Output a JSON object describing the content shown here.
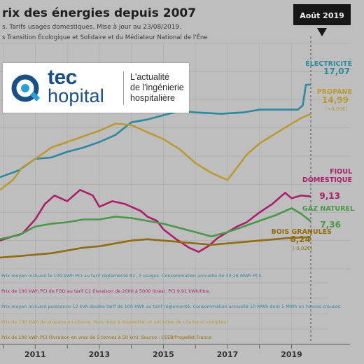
{
  "chart_data": {
    "type": "line",
    "title": "rix des énergies depuis 2007",
    "subtitle_lines": [
      "s. Tarifs usages domestiques. Mise à jour au 23/08/2019.",
      "s Transition Écologique et Solidaire et du Médiateur National de l'Éne"
    ],
    "highlight": {
      "label": "Août 2019",
      "x": 2019.6
    },
    "x_ticks": [
      2011,
      2013,
      2015,
      2017,
      2019
    ],
    "xlim": [
      2009.9,
      2019.95
    ],
    "ylim": [
      3.6,
      20.0
    ],
    "grid": true,
    "series": [
      {
        "name": "ÉLECTRICITÉ",
        "end_label": "17,07",
        "color": "#2e8fa6",
        "points": [
          [
            2009.9,
            10.5
          ],
          [
            2010.5,
            11.0
          ],
          [
            2011.0,
            11.8
          ],
          [
            2011.5,
            11.9
          ],
          [
            2012.0,
            12.3
          ],
          [
            2012.5,
            12.6
          ],
          [
            2013.0,
            13.0
          ],
          [
            2013.5,
            13.5
          ],
          [
            2014.0,
            14.4
          ],
          [
            2014.5,
            14.6
          ],
          [
            2015.0,
            14.9
          ],
          [
            2015.5,
            15.2
          ],
          [
            2016.0,
            15.1
          ],
          [
            2016.8,
            15.0
          ],
          [
            2017.5,
            15.1
          ],
          [
            2018.0,
            15.3
          ],
          [
            2018.8,
            15.3
          ],
          [
            2019.2,
            15.3
          ],
          [
            2019.35,
            15.6
          ],
          [
            2019.45,
            17.07
          ],
          [
            2019.6,
            17.07
          ]
        ]
      },
      {
        "name": "PROPANE",
        "end_label": "14,99",
        "sub": "(+0,00€)",
        "color": "#c4a233",
        "points": [
          [
            2009.9,
            9.6
          ],
          [
            2010.3,
            10.3
          ],
          [
            2010.6,
            11.2
          ],
          [
            2011.0,
            11.8
          ],
          [
            2011.5,
            12.6
          ],
          [
            2012.0,
            13.0
          ],
          [
            2012.5,
            13.4
          ],
          [
            2013.0,
            13.8
          ],
          [
            2013.5,
            14.3
          ],
          [
            2014.0,
            14.2
          ],
          [
            2014.5,
            13.7
          ],
          [
            2015.0,
            13.2
          ],
          [
            2015.5,
            12.5
          ],
          [
            2016.0,
            11.5
          ],
          [
            2016.5,
            10.8
          ],
          [
            2016.8,
            10.5
          ],
          [
            2017.0,
            10.3
          ],
          [
            2017.3,
            11.2
          ],
          [
            2017.6,
            12.1
          ],
          [
            2018.0,
            12.9
          ],
          [
            2018.5,
            13.6
          ],
          [
            2019.0,
            14.3
          ],
          [
            2019.3,
            14.7
          ],
          [
            2019.6,
            14.99
          ]
        ]
      },
      {
        "name": "FIOUL DOMESTIQUE",
        "end_label": "9,13",
        "color": "#b51c6e",
        "points": [
          [
            2009.9,
            6.0
          ],
          [
            2010.3,
            6.3
          ],
          [
            2010.6,
            6.5
          ],
          [
            2011.0,
            7.5
          ],
          [
            2011.3,
            8.6
          ],
          [
            2011.6,
            9.2
          ],
          [
            2012.0,
            8.8
          ],
          [
            2012.4,
            9.6
          ],
          [
            2012.8,
            9.2
          ],
          [
            2013.0,
            8.4
          ],
          [
            2013.4,
            8.8
          ],
          [
            2013.8,
            8.6
          ],
          [
            2014.0,
            8.4
          ],
          [
            2014.3,
            8.1
          ],
          [
            2014.5,
            7.7
          ],
          [
            2014.8,
            7.4
          ],
          [
            2015.0,
            6.8
          ],
          [
            2015.4,
            6.1
          ],
          [
            2015.8,
            5.5
          ],
          [
            2016.1,
            5.2
          ],
          [
            2016.4,
            5.6
          ],
          [
            2016.7,
            6.2
          ],
          [
            2017.0,
            6.6
          ],
          [
            2017.3,
            7.0
          ],
          [
            2017.6,
            7.3
          ],
          [
            2018.0,
            8.0
          ],
          [
            2018.4,
            8.6
          ],
          [
            2018.8,
            9.4
          ],
          [
            2019.0,
            9.0
          ],
          [
            2019.3,
            9.2
          ],
          [
            2019.6,
            9.13
          ]
        ]
      },
      {
        "name": "GAZ NATUREL",
        "end_label": "7,36",
        "color": "#4d9f49",
        "points": [
          [
            2009.9,
            6.1
          ],
          [
            2010.5,
            6.4
          ],
          [
            2011.0,
            7.0
          ],
          [
            2011.5,
            7.2
          ],
          [
            2012.0,
            7.3
          ],
          [
            2012.5,
            7.5
          ],
          [
            2013.0,
            7.5
          ],
          [
            2013.5,
            7.7
          ],
          [
            2014.0,
            7.6
          ],
          [
            2014.5,
            7.4
          ],
          [
            2015.0,
            7.2
          ],
          [
            2015.5,
            6.9
          ],
          [
            2016.0,
            6.6
          ],
          [
            2016.5,
            6.3
          ],
          [
            2017.0,
            6.6
          ],
          [
            2017.5,
            7.0
          ],
          [
            2018.0,
            7.4
          ],
          [
            2018.5,
            7.8
          ],
          [
            2019.0,
            8.3
          ],
          [
            2019.3,
            7.9
          ],
          [
            2019.6,
            7.36
          ]
        ]
      },
      {
        "name": "BOIS GRANULÉS",
        "end_label": "6,24",
        "sub": "(-0,02€)",
        "color": "#9a6f0c",
        "points": [
          [
            2009.9,
            4.8
          ],
          [
            2010.5,
            4.9
          ],
          [
            2011.0,
            5.0
          ],
          [
            2011.5,
            5.1
          ],
          [
            2012.0,
            5.3
          ],
          [
            2012.5,
            5.5
          ],
          [
            2013.0,
            5.6
          ],
          [
            2013.5,
            5.8
          ],
          [
            2014.0,
            6.0
          ],
          [
            2014.5,
            6.1
          ],
          [
            2015.0,
            6.0
          ],
          [
            2015.5,
            5.9
          ],
          [
            2016.0,
            5.8
          ],
          [
            2016.5,
            5.7
          ],
          [
            2017.0,
            5.8
          ],
          [
            2017.5,
            5.9
          ],
          [
            2018.0,
            6.0
          ],
          [
            2018.5,
            6.1
          ],
          [
            2019.0,
            6.2
          ],
          [
            2019.6,
            6.24
          ]
        ]
      }
    ],
    "notes": [
      {
        "text": "Prix moyen incluant le 100 kWh PCI au tarif réglementé B1, 2 usages. Consommation annuelle de 33,26 MWh PCS.",
        "color": "#2e8fa6"
      },
      {
        "text": "Prix de 100 kWh PCI de FOD au tarif C1 (livraison de 2000 à 5000 litres). PCI 9,91 kWh/litre.",
        "color": "#b51c6e"
      },
      {
        "text": "Prix moyen incluant puissance 12 kVA double tarif de 100 kWh au tarif réglementé. Consommation annuelle 10 MWh dont 5 MWh en heures creuses.",
        "color": "#2e8fa6"
      },
      {
        "text": "Prix de 100 kWh de propane en citerne. Hors mise à disposition et entretien de citerne et compteur.",
        "color": "#c4a233"
      },
      {
        "text": "Prix de 100 kWh PCI (livraison en vrac de 5 tonnes à 50 km). Source : CEEB/Propellet France",
        "color": "#9a6f0c"
      }
    ]
  },
  "logo": {
    "brand_top": "tec",
    "brand_bottom": "hopital",
    "tagline": [
      "L'actualité",
      "de l'ingénierie",
      "hospitalière"
    ],
    "primary_color": "#1a4f86",
    "accent_color": "#2a9fd6"
  }
}
